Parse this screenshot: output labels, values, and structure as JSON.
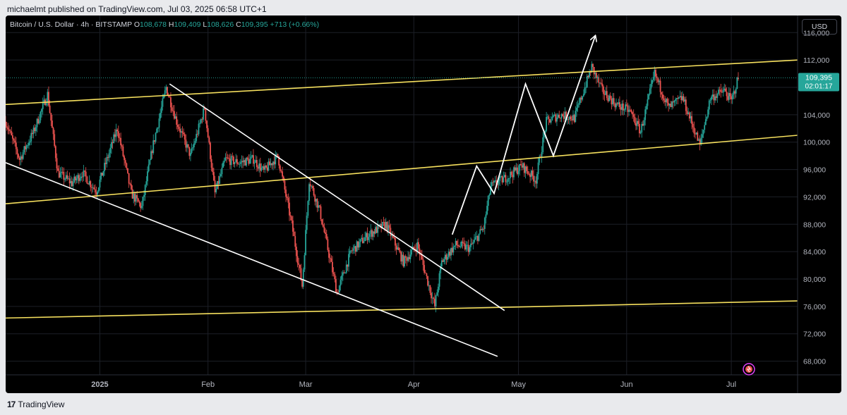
{
  "header": {
    "published": "michaelmt published on TradingView.com, Jul 03, 2025 06:58 UTC+1"
  },
  "footer": {
    "brand": "TradingView",
    "logo_text": "17"
  },
  "legend": {
    "symbol": "Bitcoin / U.S. Dollar · 4h · BITSTAMP",
    "o_label": "O",
    "o_value": "108,678",
    "h_label": "H",
    "h_value": "109,409",
    "l_label": "L",
    "l_value": "108,626",
    "c_label": "C",
    "c_value": "109,395",
    "change": "+713 (+0.66%)"
  },
  "currency_button": "USD",
  "price_tag": {
    "price": "109,395",
    "countdown": "02:01:17"
  },
  "colors": {
    "up": "#26a69a",
    "down": "#ef5350",
    "trendline": "#f6e05e",
    "drawing": "#ffffff",
    "grid": "#1c1f27",
    "axis_text": "#b2b5be",
    "tag_bg": "#26a69a"
  },
  "chart_data": {
    "type": "candlestick",
    "title": "Bitcoin / U.S. Dollar · 4h · BITSTAMP",
    "timeframe": "4h",
    "xlabel": "",
    "ylabel": "",
    "x_range": [
      "2024-12-05",
      "2025-07-20"
    ],
    "y_range": [
      66000,
      118500
    ],
    "y_ticks": [
      68000,
      72000,
      76000,
      80000,
      84000,
      88000,
      92000,
      96000,
      100000,
      104000,
      108000,
      112000,
      116000
    ],
    "y_tick_labels": [
      "68,000",
      "72,000",
      "76,000",
      "80,000",
      "84,000",
      "88,000",
      "92,000",
      "96,000",
      "100,000",
      "104,000",
      "108,000",
      "112,000",
      "116,000"
    ],
    "x_ticks": [
      {
        "date": "2025-01-01",
        "label": "2025"
      },
      {
        "date": "2025-02-01",
        "label": "Feb"
      },
      {
        "date": "2025-03-01",
        "label": "Mar"
      },
      {
        "date": "2025-04-01",
        "label": "Apr"
      },
      {
        "date": "2025-05-01",
        "label": "May"
      },
      {
        "date": "2025-06-01",
        "label": "Jun"
      },
      {
        "date": "2025-07-01",
        "label": "Jul"
      }
    ],
    "grid": true,
    "last_price": 109395,
    "price_path": [
      [
        "2024-12-05",
        103000
      ],
      [
        "2024-12-09",
        97500
      ],
      [
        "2024-12-13",
        101500
      ],
      [
        "2024-12-17",
        107000
      ],
      [
        "2024-12-20",
        95500
      ],
      [
        "2024-12-24",
        94000
      ],
      [
        "2024-12-27",
        95500
      ],
      [
        "2024-12-31",
        92800
      ],
      [
        "2025-01-06",
        102000
      ],
      [
        "2025-01-10",
        92500
      ],
      [
        "2025-01-13",
        90500
      ],
      [
        "2025-01-16",
        99000
      ],
      [
        "2025-01-20",
        108000
      ],
      [
        "2025-01-23",
        103000
      ],
      [
        "2025-01-27",
        98000
      ],
      [
        "2025-01-31",
        105000
      ],
      [
        "2025-02-03",
        92500
      ],
      [
        "2025-02-06",
        97500
      ],
      [
        "2025-02-10",
        97000
      ],
      [
        "2025-02-14",
        97500
      ],
      [
        "2025-02-17",
        95700
      ],
      [
        "2025-02-21",
        98000
      ],
      [
        "2025-02-25",
        88000
      ],
      [
        "2025-02-28",
        79000
      ],
      [
        "2025-03-02",
        94500
      ],
      [
        "2025-03-05",
        90000
      ],
      [
        "2025-03-10",
        78000
      ],
      [
        "2025-03-14",
        84000
      ],
      [
        "2025-03-19",
        86500
      ],
      [
        "2025-03-24",
        88000
      ],
      [
        "2025-03-29",
        82500
      ],
      [
        "2025-04-02",
        85000
      ],
      [
        "2025-04-07",
        76000
      ],
      [
        "2025-04-09",
        82500
      ],
      [
        "2025-04-13",
        85000
      ],
      [
        "2025-04-17",
        84500
      ],
      [
        "2025-04-21",
        87500
      ],
      [
        "2025-04-23",
        93500
      ],
      [
        "2025-04-28",
        95000
      ],
      [
        "2025-05-02",
        96500
      ],
      [
        "2025-05-06",
        94500
      ],
      [
        "2025-05-09",
        103000
      ],
      [
        "2025-05-13",
        104000
      ],
      [
        "2025-05-17",
        103500
      ],
      [
        "2025-05-22",
        111000
      ],
      [
        "2025-05-25",
        107500
      ],
      [
        "2025-05-29",
        105500
      ],
      [
        "2025-06-02",
        104500
      ],
      [
        "2025-06-05",
        101500
      ],
      [
        "2025-06-09",
        110000
      ],
      [
        "2025-06-13",
        105000
      ],
      [
        "2025-06-17",
        106500
      ],
      [
        "2025-06-22",
        99500
      ],
      [
        "2025-06-25",
        106500
      ],
      [
        "2025-06-29",
        107500
      ],
      [
        "2025-07-01",
        106000
      ],
      [
        "2025-07-03",
        109395
      ]
    ],
    "drawings": {
      "yellow_lines": [
        [
          [
            "2024-12-05",
            105500
          ],
          [
            "2025-07-20",
            112000
          ]
        ],
        [
          [
            "2024-12-05",
            91000
          ],
          [
            "2025-07-20",
            101000
          ]
        ],
        [
          [
            "2024-12-05",
            74300
          ],
          [
            "2025-07-20",
            76800
          ]
        ]
      ],
      "white_lines": [
        [
          [
            "2025-01-21",
            108500
          ],
          [
            "2025-04-27",
            75400
          ]
        ],
        [
          [
            "2024-12-05",
            97000
          ],
          [
            "2025-04-25",
            68700
          ]
        ]
      ],
      "white_projection": [
        [
          "2025-04-12",
          86500
        ],
        [
          "2025-04-19",
          96500
        ],
        [
          "2025-04-24",
          92500
        ],
        [
          "2025-05-03",
          108500
        ],
        [
          "2025-05-11",
          98000
        ],
        [
          "2025-05-23",
          115500
        ]
      ]
    }
  }
}
